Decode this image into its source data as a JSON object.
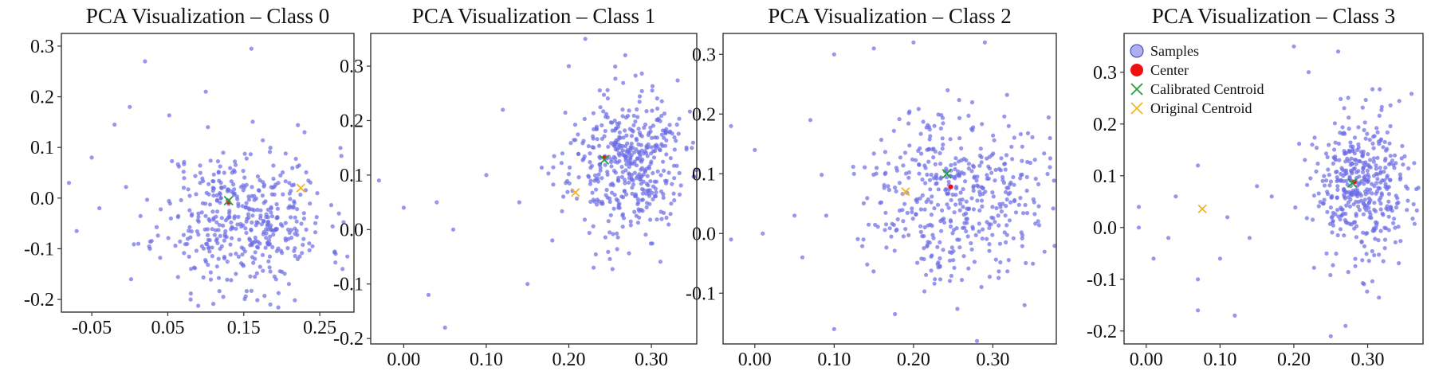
{
  "chart_data": [
    {
      "type": "scatter",
      "title": "PCA Visualization – Class 0",
      "xlim": [
        -0.09,
        0.295
      ],
      "ylim": [
        -0.225,
        0.325
      ],
      "xticks": [
        -0.05,
        0.05,
        0.15,
        0.25
      ],
      "xtick_labels": [
        "-0.05",
        "0.05",
        "0.15",
        "0.25"
      ],
      "yticks": [
        -0.2,
        -0.1,
        0.0,
        0.1,
        0.2,
        0.3
      ],
      "ytick_labels": [
        "-0.2",
        "-0.1",
        "0.0",
        "0.1",
        "0.2",
        "0.3"
      ],
      "samples": {
        "approx_count": 450,
        "mean": [
          0.15,
          -0.04
        ],
        "std": [
          0.055,
          0.07
        ],
        "seed": 11,
        "outliers": [
          [
            -0.08,
            0.03
          ],
          [
            -0.05,
            0.08
          ],
          [
            -0.02,
            0.145
          ],
          [
            0.02,
            0.27
          ],
          [
            0.16,
            0.295
          ],
          [
            0.0,
            0.18
          ],
          [
            0.28,
            -0.14
          ],
          [
            0.08,
            -0.2
          ],
          [
            0.185,
            -0.21
          ],
          [
            -0.07,
            -0.065
          ],
          [
            0.1,
            0.21
          ],
          [
            0.23,
            0.13
          ],
          [
            -0.04,
            -0.02
          ]
        ]
      },
      "center": [
        0.13,
        -0.008
      ],
      "calibrated_centroid": [
        0.13,
        -0.005
      ],
      "original_centroid": [
        0.225,
        0.02
      ],
      "legend": null
    },
    {
      "type": "scatter",
      "title": "PCA Visualization – Class 1",
      "xlim": [
        -0.04,
        0.355
      ],
      "ylim": [
        -0.21,
        0.36
      ],
      "xticks": [
        0.0,
        0.1,
        0.2,
        0.3
      ],
      "xtick_labels": [
        "0.00",
        "0.10",
        "0.20",
        "0.30"
      ],
      "yticks": [
        -0.2,
        -0.1,
        0.0,
        0.1,
        0.2,
        0.3
      ],
      "ytick_labels": [
        "-0.2",
        "-0.1",
        "0.0",
        "0.1",
        "0.2",
        "0.3"
      ],
      "samples": {
        "approx_count": 450,
        "mean": [
          0.27,
          0.12
        ],
        "std": [
          0.035,
          0.065
        ],
        "seed": 23,
        "outliers": [
          [
            -0.03,
            0.09
          ],
          [
            0.0,
            0.04
          ],
          [
            0.04,
            0.05
          ],
          [
            0.05,
            -0.18
          ],
          [
            0.06,
            0.0
          ],
          [
            0.12,
            0.22
          ],
          [
            0.1,
            0.1
          ],
          [
            0.14,
            0.05
          ],
          [
            0.18,
            -0.02
          ],
          [
            0.2,
            0.3
          ],
          [
            0.22,
            0.35
          ],
          [
            0.23,
            -0.07
          ],
          [
            0.15,
            -0.1
          ],
          [
            0.03,
            -0.12
          ]
        ]
      },
      "center": [
        0.243,
        0.132
      ],
      "calibrated_centroid": [
        0.243,
        0.128
      ],
      "original_centroid": [
        0.208,
        0.068
      ],
      "legend": null
    },
    {
      "type": "scatter",
      "title": "PCA Visualization – Class 2",
      "xlim": [
        -0.04,
        0.38
      ],
      "ylim": [
        -0.185,
        0.335
      ],
      "xticks": [
        0.0,
        0.1,
        0.2,
        0.3
      ],
      "xtick_labels": [
        "0.00",
        "0.10",
        "0.20",
        "0.30"
      ],
      "yticks": [
        -0.1,
        0.0,
        0.1,
        0.2,
        0.3
      ],
      "ytick_labels": [
        "-0.1",
        "0.0",
        "0.1",
        "0.2",
        "0.3"
      ],
      "samples": {
        "approx_count": 450,
        "mean": [
          0.255,
          0.07
        ],
        "std": [
          0.055,
          0.07
        ],
        "seed": 37,
        "outliers": [
          [
            -0.03,
            0.18
          ],
          [
            -0.03,
            -0.01
          ],
          [
            0.01,
            0.0
          ],
          [
            0.05,
            0.03
          ],
          [
            0.09,
            0.03
          ],
          [
            0.1,
            -0.16
          ],
          [
            0.1,
            0.3
          ],
          [
            0.07,
            0.19
          ],
          [
            0.06,
            -0.04
          ],
          [
            0.15,
            0.31
          ],
          [
            0.2,
            0.32
          ],
          [
            0.29,
            0.32
          ],
          [
            0.32,
            0.18
          ],
          [
            0.34,
            -0.12
          ],
          [
            0.28,
            -0.18
          ],
          [
            0.0,
            0.14
          ]
        ]
      },
      "center": [
        0.247,
        0.078
      ],
      "calibrated_centroid": [
        0.242,
        0.1
      ],
      "original_centroid": [
        0.19,
        0.07
      ],
      "legend": null
    },
    {
      "type": "scatter",
      "title": "PCA Visualization – Class 3",
      "xlim": [
        -0.03,
        0.375
      ],
      "ylim": [
        -0.225,
        0.375
      ],
      "xticks": [
        0.0,
        0.1,
        0.2,
        0.3
      ],
      "xtick_labels": [
        "0.00",
        "0.10",
        "0.20",
        "0.30"
      ],
      "yticks": [
        -0.2,
        -0.1,
        0.0,
        0.1,
        0.2,
        0.3
      ],
      "ytick_labels": [
        "-0.2",
        "-0.1",
        "0.0",
        "0.1",
        "0.2",
        "0.3"
      ],
      "samples": {
        "approx_count": 420,
        "mean": [
          0.295,
          0.075
        ],
        "std": [
          0.035,
          0.07
        ],
        "seed": 53,
        "outliers": [
          [
            -0.01,
            0.04
          ],
          [
            -0.01,
            0.0
          ],
          [
            0.01,
            -0.06
          ],
          [
            0.04,
            0.06
          ],
          [
            0.07,
            0.12
          ],
          [
            0.07,
            -0.16
          ],
          [
            0.07,
            -0.1
          ],
          [
            0.1,
            -0.06
          ],
          [
            0.11,
            0.02
          ],
          [
            0.12,
            -0.17
          ],
          [
            0.15,
            0.08
          ],
          [
            0.17,
            0.06
          ],
          [
            0.2,
            0.35
          ],
          [
            0.22,
            0.3
          ],
          [
            0.25,
            -0.21
          ],
          [
            0.27,
            -0.19
          ],
          [
            0.26,
            0.34
          ],
          [
            0.14,
            -0.02
          ],
          [
            0.03,
            -0.02
          ]
        ]
      },
      "center": [
        0.282,
        0.088
      ],
      "calibrated_centroid": [
        0.279,
        0.086
      ],
      "original_centroid": [
        0.076,
        0.036
      ],
      "legend": {
        "location": "top-left",
        "entries": [
          "Samples",
          "Center",
          "Calibrated Centroid",
          "Original Centroid"
        ]
      }
    }
  ],
  "colors": {
    "samples": "#6b6be6",
    "center": "#ee1111",
    "calibrated": "#22a040",
    "original": "#f5b324",
    "frame": "#333333",
    "text": "#111111"
  }
}
